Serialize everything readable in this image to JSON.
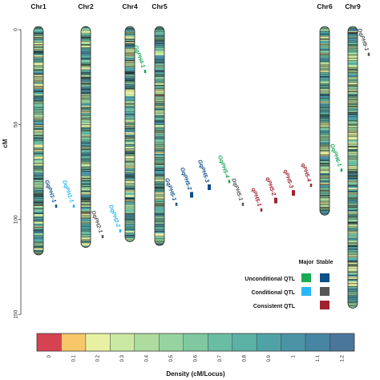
{
  "chart_data": {
    "type": "chromosome-map",
    "ylabel": "cM",
    "ylim": [
      0,
      155
    ],
    "yticks": [
      0,
      50,
      100,
      150
    ],
    "chromosomes": [
      {
        "name": "Chr1",
        "length": 117
      },
      {
        "name": "Chr2",
        "length": 113
      },
      {
        "name": "Chr4",
        "length": 110
      },
      {
        "name": "Chr5",
        "length": 112
      },
      {
        "name": "Chr6",
        "length": 96
      },
      {
        "name": "Chr9",
        "length": 145
      }
    ],
    "qtls": [
      {
        "label": "GqPH1-1",
        "chr": "Chr1",
        "pos": 93,
        "category": "Unconditional QTL",
        "major": false
      },
      {
        "label": "DqPH1-1",
        "chr": "Chr2",
        "pos": 93,
        "category": "Conditional QTL",
        "major": false
      },
      {
        "label": "DqPH2-1",
        "chr": "Chr2",
        "pos": 109,
        "category": "Stable",
        "major": false
      },
      {
        "label": "DqPH2-2",
        "chr": "Chr4",
        "pos": 106,
        "category": "Conditional QTL",
        "major": false
      },
      {
        "label": "GqPH4-1",
        "chr": "Chr4",
        "pos": 22,
        "category": "Unconditional QTL",
        "major": true
      },
      {
        "label": "GqPH5-1",
        "chr": "Chr5",
        "pos": 92,
        "category": "Unconditional QTL",
        "major": false
      },
      {
        "label": "GqPH5-2",
        "chr": "Chr5",
        "pos": 87,
        "category": "Unconditional QTL",
        "major": false
      },
      {
        "label": "GqPH5-3",
        "chr": "Chr5",
        "pos": 83,
        "category": "Unconditional QTL",
        "major": false
      },
      {
        "label": "GqPH5-4",
        "chr": "Chr5",
        "pos": 80,
        "category": "Unconditional QTL",
        "major": true
      },
      {
        "label": "DqPH5-1",
        "chr": "Chr5",
        "pos": 92,
        "category": "Stable",
        "major": false
      },
      {
        "label": "qPH5-1",
        "chr": "Chr5",
        "pos": 95,
        "category": "Consistent QTL",
        "major": false
      },
      {
        "label": "qPH5-2",
        "chr": "Chr5",
        "pos": 90,
        "category": "Consistent QTL",
        "major": false
      },
      {
        "label": "qPH5-3",
        "chr": "Chr5",
        "pos": 86,
        "category": "Consistent QTL",
        "major": false
      },
      {
        "label": "qPH5-4",
        "chr": "Chr5",
        "pos": 82,
        "category": "Consistent QTL",
        "major": false
      },
      {
        "label": "GqPH6-1",
        "chr": "Chr6",
        "pos": 74,
        "category": "Unconditional QTL",
        "major": true
      },
      {
        "label": "DqPH9-1",
        "chr": "Chr9",
        "pos": 13,
        "category": "Stable",
        "major": false
      }
    ],
    "legend": {
      "column_headers": [
        "Major",
        "Stable"
      ],
      "rows": [
        {
          "label": "Unconditional QTL",
          "major_color": "#1aaa55",
          "stable_color": "#0d4f8b"
        },
        {
          "label": "Conditional QTL",
          "major_color": "#29b6f6",
          "stable_color": "#555555"
        },
        {
          "label": "Consistent QTL",
          "major_color": null,
          "stable_color": "#a0222e"
        }
      ]
    },
    "colorbar": {
      "title": "Density (cM/Locus)",
      "ticks": [
        "0",
        "0.1",
        "0.2",
        "0.3",
        "0.4",
        "0.5",
        "0.6",
        "0.7",
        "0.8",
        "0.9",
        "1",
        "1.1",
        "1.2"
      ],
      "colors": [
        "#d6424f",
        "#f7c76a",
        "#e8f0a3",
        "#c9e8a1",
        "#acdc9f",
        "#96d3a0",
        "#7fc8a0",
        "#69bda2",
        "#5bb1a4",
        "#4fa3a6",
        "#4a94a6",
        "#4885a2",
        "#4a769b"
      ]
    }
  }
}
